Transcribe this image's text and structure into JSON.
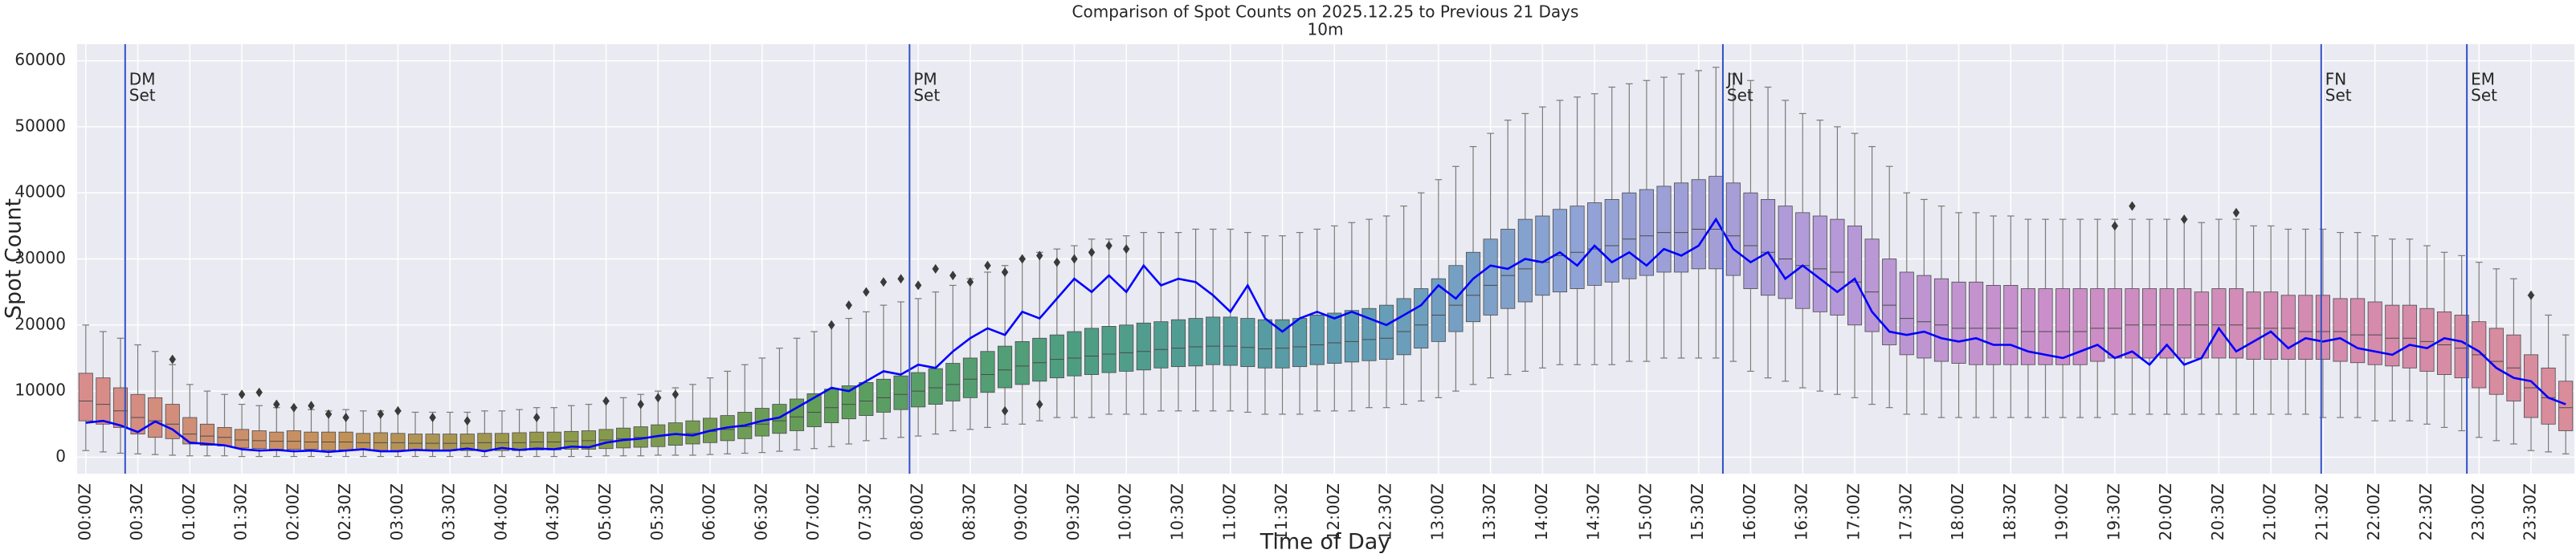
{
  "chart_data": {
    "type": "box",
    "title": "Comparison of Spot Counts on 2025.12.25 to Previous 21 Days",
    "subtitle": "10m",
    "xlabel": "Time of Day",
    "ylabel": "Spot Count",
    "categories": [
      "00:00Z",
      null,
      null,
      "00:30Z",
      null,
      null,
      "01:00Z",
      null,
      null,
      "01:30Z",
      null,
      null,
      "02:00Z",
      null,
      null,
      "02:30Z",
      null,
      null,
      "03:00Z",
      null,
      null,
      "03:30Z",
      null,
      null,
      "04:00Z",
      null,
      null,
      "04:30Z",
      null,
      null,
      "05:00Z",
      null,
      null,
      "05:30Z",
      null,
      null,
      "06:00Z",
      null,
      null,
      "06:30Z",
      null,
      null,
      "07:00Z",
      null,
      null,
      "07:30Z",
      null,
      null,
      "08:00Z",
      null,
      null,
      "08:30Z",
      null,
      null,
      "09:00Z",
      null,
      null,
      "09:30Z",
      null,
      null,
      "10:00Z",
      null,
      null,
      "10:30Z",
      null,
      null,
      "11:00Z",
      null,
      null,
      "11:30Z",
      null,
      null,
      "12:00Z",
      null,
      null,
      "12:30Z",
      null,
      null,
      "13:00Z",
      null,
      null,
      "13:30Z",
      null,
      null,
      "14:00Z",
      null,
      null,
      "14:30Z",
      null,
      null,
      "15:00Z",
      null,
      null,
      "15:30Z",
      null,
      null,
      "16:00Z",
      null,
      null,
      "16:30Z",
      null,
      null,
      "17:00Z",
      null,
      null,
      "17:30Z",
      null,
      null,
      "18:00Z",
      null,
      null,
      "18:30Z",
      null,
      null,
      "19:00Z",
      null,
      null,
      "19:30Z",
      null,
      null,
      "20:00Z",
      null,
      null,
      "20:30Z",
      null,
      null,
      "21:00Z",
      null,
      null,
      "21:30Z",
      null,
      null,
      "22:00Z",
      null,
      null,
      "22:30Z",
      null,
      null,
      "23:00Z",
      null,
      null,
      "23:30Z",
      null,
      null
    ],
    "boxes": {
      "q3": [
        12700,
        12000,
        10500,
        9500,
        9000,
        8000,
        6000,
        5000,
        4500,
        4200,
        4000,
        3800,
        4000,
        3800,
        3800,
        3800,
        3600,
        3700,
        3600,
        3500,
        3500,
        3500,
        3500,
        3600,
        3600,
        3700,
        3800,
        3800,
        3900,
        4000,
        4200,
        4400,
        4600,
        4900,
        5200,
        5500,
        5900,
        6300,
        6800,
        7400,
        8000,
        8800,
        9600,
        10300,
        10800,
        11300,
        11800,
        12300,
        12800,
        13400,
        14200,
        15000,
        16000,
        16800,
        17500,
        18000,
        18500,
        19000,
        19500,
        19800,
        20000,
        20300,
        20500,
        20800,
        21000,
        21200,
        21200,
        21000,
        20800,
        20800,
        21000,
        21500,
        21800,
        22200,
        22500,
        23000,
        24000,
        25500,
        27000,
        29000,
        31000,
        33000,
        34500,
        36000,
        36500,
        37500,
        38000,
        38500,
        39000,
        40000,
        40500,
        41000,
        41500,
        42000,
        42500,
        41500,
        40000,
        39000,
        38000,
        37000,
        36500,
        36000,
        35000,
        33000,
        30000,
        28000,
        27500,
        27000,
        26500,
        26500,
        26000,
        26000,
        25500,
        25500,
        25500,
        25500,
        25500,
        25500,
        25500,
        25500,
        25500,
        25500,
        25000,
        25500,
        25500,
        25000,
        25000,
        24500,
        24500,
        24500,
        24000,
        24000,
        23500,
        23000,
        23000,
        22500,
        22000,
        21500,
        20500,
        19500,
        18500,
        15500,
        13500,
        11500
      ],
      "median": [
        8500,
        8000,
        7000,
        6000,
        5500,
        5000,
        3500,
        3200,
        3000,
        2600,
        2500,
        2400,
        2400,
        2300,
        2300,
        2300,
        2200,
        2200,
        2200,
        2100,
        2100,
        2100,
        2100,
        2200,
        2200,
        2200,
        2300,
        2300,
        2400,
        2500,
        2600,
        2800,
        3000,
        3200,
        3400,
        3600,
        3900,
        4200,
        4600,
        5000,
        5500,
        6100,
        6800,
        7500,
        8000,
        8500,
        9000,
        9500,
        10000,
        10500,
        11000,
        11800,
        12500,
        13200,
        13800,
        14300,
        14800,
        15000,
        15300,
        15600,
        15800,
        16000,
        16300,
        16500,
        16700,
        16800,
        16800,
        16600,
        16400,
        16500,
        16700,
        17000,
        17300,
        17500,
        17800,
        18000,
        19000,
        20000,
        21500,
        23000,
        24500,
        26000,
        27500,
        28500,
        29500,
        30500,
        31000,
        31500,
        32000,
        33000,
        33500,
        34000,
        34000,
        34500,
        34500,
        33500,
        32000,
        31000,
        30000,
        29000,
        28500,
        28000,
        26500,
        25000,
        23000,
        21000,
        20500,
        20000,
        19500,
        19500,
        19500,
        19500,
        19000,
        19000,
        19000,
        19000,
        19500,
        19500,
        20000,
        20000,
        20000,
        20000,
        20000,
        20000,
        20000,
        19500,
        19500,
        19500,
        19000,
        19000,
        19000,
        18500,
        18500,
        18000,
        18000,
        17500,
        17000,
        16500,
        15500,
        14500,
        13500,
        10500,
        9000,
        7500
      ],
      "q1": [
        5500,
        5000,
        4500,
        3500,
        3000,
        2800,
        2000,
        1800,
        1700,
        1400,
        1300,
        1200,
        1200,
        1200,
        1100,
        1100,
        1100,
        1000,
        1000,
        1000,
        1000,
        1000,
        1000,
        1000,
        1000,
        1000,
        1100,
        1100,
        1200,
        1200,
        1300,
        1400,
        1500,
        1600,
        1800,
        2000,
        2200,
        2500,
        2800,
        3200,
        3600,
        4000,
        4600,
        5200,
        5800,
        6300,
        6800,
        7200,
        7600,
        8000,
        8500,
        9000,
        9800,
        10500,
        11000,
        11500,
        12000,
        12300,
        12500,
        12800,
        13000,
        13200,
        13500,
        13700,
        13800,
        14000,
        13900,
        13700,
        13500,
        13500,
        13700,
        14000,
        14200,
        14400,
        14600,
        14800,
        15500,
        16500,
        17500,
        19000,
        20500,
        21500,
        22500,
        23500,
        24500,
        25000,
        25500,
        26000,
        26500,
        27000,
        27500,
        28000,
        28000,
        28500,
        28500,
        27500,
        25500,
        24500,
        24000,
        22500,
        22000,
        21500,
        20000,
        19000,
        17000,
        15500,
        15000,
        14500,
        14200,
        14000,
        14000,
        14000,
        14000,
        14000,
        14000,
        14000,
        14500,
        15000,
        15000,
        15000,
        15000,
        15000,
        15000,
        15000,
        15000,
        14800,
        14800,
        14800,
        14800,
        14800,
        14500,
        14300,
        14000,
        13800,
        13500,
        13000,
        12500,
        12000,
        10500,
        9500,
        8500,
        6000,
        5000,
        4000
      ],
      "whislo": [
        1000,
        800,
        600,
        500,
        400,
        300,
        200,
        200,
        200,
        100,
        100,
        100,
        100,
        100,
        100,
        100,
        100,
        100,
        100,
        100,
        100,
        100,
        100,
        100,
        100,
        100,
        100,
        100,
        100,
        100,
        200,
        200,
        200,
        300,
        300,
        300,
        400,
        500,
        600,
        700,
        900,
        1100,
        1300,
        1600,
        2000,
        2500,
        2800,
        3000,
        3200,
        3500,
        4000,
        4200,
        4500,
        5000,
        5000,
        5500,
        6000,
        6000,
        6000,
        6500,
        6500,
        6500,
        7000,
        7000,
        7000,
        7000,
        7000,
        6800,
        6500,
        6500,
        6500,
        7000,
        7000,
        7000,
        7500,
        7500,
        8000,
        8500,
        9000,
        10000,
        11000,
        12000,
        12500,
        13000,
        13500,
        14000,
        14000,
        14000,
        14000,
        14500,
        14500,
        15000,
        15000,
        15000,
        15000,
        14500,
        13000,
        12000,
        11500,
        10500,
        10000,
        9500,
        9000,
        8000,
        7500,
        6500,
        6500,
        6000,
        6000,
        6000,
        6000,
        6000,
        6000,
        6000,
        6000,
        6000,
        6000,
        6500,
        6500,
        6500,
        6500,
        6500,
        6500,
        6500,
        6500,
        6500,
        6500,
        6500,
        6500,
        6000,
        6000,
        6000,
        5500,
        5500,
        5500,
        5000,
        4500,
        4000,
        3000,
        2500,
        2000,
        1000,
        800,
        500
      ],
      "whishi": [
        20000,
        19000,
        18000,
        17000,
        16000,
        14000,
        11000,
        10000,
        9500,
        8000,
        7800,
        7500,
        7500,
        7200,
        7000,
        7200,
        7000,
        7000,
        7000,
        6800,
        6800,
        6800,
        6800,
        7000,
        7000,
        7200,
        7500,
        7500,
        7800,
        8000,
        8500,
        9000,
        9500,
        10000,
        10500,
        11000,
        12000,
        13000,
        14000,
        15000,
        16500,
        18000,
        19000,
        20000,
        21000,
        22000,
        23000,
        23500,
        24000,
        25000,
        26000,
        27000,
        28000,
        29000,
        30000,
        31000,
        31500,
        32000,
        33000,
        33000,
        33500,
        34000,
        34000,
        34000,
        34500,
        34500,
        34500,
        34000,
        33500,
        33500,
        34000,
        34500,
        35000,
        35500,
        36000,
        36500,
        38000,
        40000,
        42000,
        44000,
        47000,
        49000,
        51000,
        52000,
        53000,
        54000,
        54500,
        55000,
        56000,
        56500,
        57000,
        57500,
        58000,
        58500,
        59000,
        58000,
        57000,
        56000,
        54000,
        52000,
        51000,
        50000,
        49000,
        47000,
        44000,
        40000,
        39000,
        38000,
        37000,
        37000,
        36500,
        36500,
        36000,
        36000,
        36000,
        36000,
        36000,
        36000,
        36000,
        36000,
        36000,
        36000,
        35500,
        36000,
        36000,
        35000,
        35000,
        34500,
        34500,
        34500,
        34000,
        34000,
        33500,
        33000,
        33000,
        32000,
        31000,
        30500,
        29500,
        28500,
        27000,
        24500,
        21500,
        18500
      ]
    },
    "palette": [
      "#d98c8c",
      "#c59158",
      "#8a9a4b",
      "#5f9e5a",
      "#4d9e82",
      "#5a9cad",
      "#8fa3d6",
      "#b49ad8",
      "#cc8ec8",
      "#d48bb0",
      "#d98c9a"
    ],
    "box_edge_color": "#4a4a4a",
    "line": {
      "color": "#0000ff",
      "values": [
        5200,
        5500,
        4800,
        3800,
        5400,
        4200,
        2200,
        2000,
        1800,
        1200,
        1000,
        1100,
        900,
        1000,
        800,
        1000,
        1200,
        900,
        900,
        1100,
        1000,
        1000,
        1300,
        900,
        1400,
        1100,
        1300,
        1200,
        1600,
        1500,
        2200,
        2600,
        2800,
        3200,
        3500,
        3300,
        4000,
        4500,
        4800,
        5500,
        6000,
        7500,
        9000,
        10500,
        10000,
        11500,
        13000,
        12500,
        14000,
        13500,
        16000,
        18000,
        19500,
        18500,
        22000,
        21000,
        24000,
        27000,
        25000,
        27500,
        25000,
        29000,
        26000,
        27000,
        26500,
        24500,
        22000,
        26000,
        21000,
        19000,
        21000,
        22000,
        21000,
        22000,
        21000,
        20000,
        21500,
        23000,
        26000,
        24000,
        27000,
        29000,
        28500,
        30000,
        29500,
        31000,
        29000,
        32000,
        29500,
        31000,
        29000,
        31500,
        30500,
        32000,
        36000,
        31500,
        29500,
        31000,
        27000,
        29000,
        27000,
        25000,
        27000,
        22000,
        19000,
        18500,
        19000,
        18000,
        17500,
        18000,
        17000,
        17000,
        16000,
        15500,
        15000,
        16000,
        17000,
        15000,
        16000,
        14000,
        17000,
        14000,
        15000,
        19500,
        16000,
        17500,
        19000,
        16500,
        18000,
        17500,
        18000,
        16500,
        16000,
        15500,
        17000,
        16500,
        18000,
        17500,
        16000,
        13500,
        12000,
        11500,
        9000,
        8000
      ]
    },
    "outliers": {
      "color": "#3a3a3a",
      "x": [
        5,
        9,
        10,
        11,
        12,
        13,
        14,
        15,
        17,
        18,
        20,
        22,
        26,
        30,
        32,
        33,
        34,
        43,
        44,
        45,
        46,
        47,
        48,
        49,
        50,
        51,
        52,
        53,
        54,
        55,
        56,
        57,
        58,
        59,
        60,
        53,
        55,
        117,
        118,
        121,
        124,
        141
      ],
      "y": [
        14800,
        9500,
        9800,
        8000,
        7500,
        7800,
        6500,
        6000,
        6500,
        7000,
        6000,
        5500,
        6000,
        8500,
        8000,
        9000,
        9500,
        20000,
        23000,
        25000,
        26500,
        27000,
        26000,
        28500,
        27500,
        26500,
        29000,
        28000,
        30000,
        30500,
        29500,
        30000,
        31000,
        32000,
        31500,
        7000,
        8000,
        35000,
        38000,
        36000,
        37000,
        24500
      ]
    },
    "markers": {
      "color": "#3050c8",
      "items": [
        {
          "label": [
            "DM",
            "Set"
          ],
          "x": 2.27
        },
        {
          "label": [
            "PM",
            "Set"
          ],
          "x": 47.5
        },
        {
          "label": [
            "JN",
            "Set"
          ],
          "x": 94.4
        },
        {
          "label": [
            "FN",
            "Set"
          ],
          "x": 128.9
        },
        {
          "label": [
            "EM",
            "Set"
          ],
          "x": 137.3
        }
      ]
    },
    "ylim": [
      -2500,
      62500
    ],
    "yticks": [
      0,
      10000,
      20000,
      30000,
      40000,
      50000,
      60000
    ],
    "grid": true
  }
}
